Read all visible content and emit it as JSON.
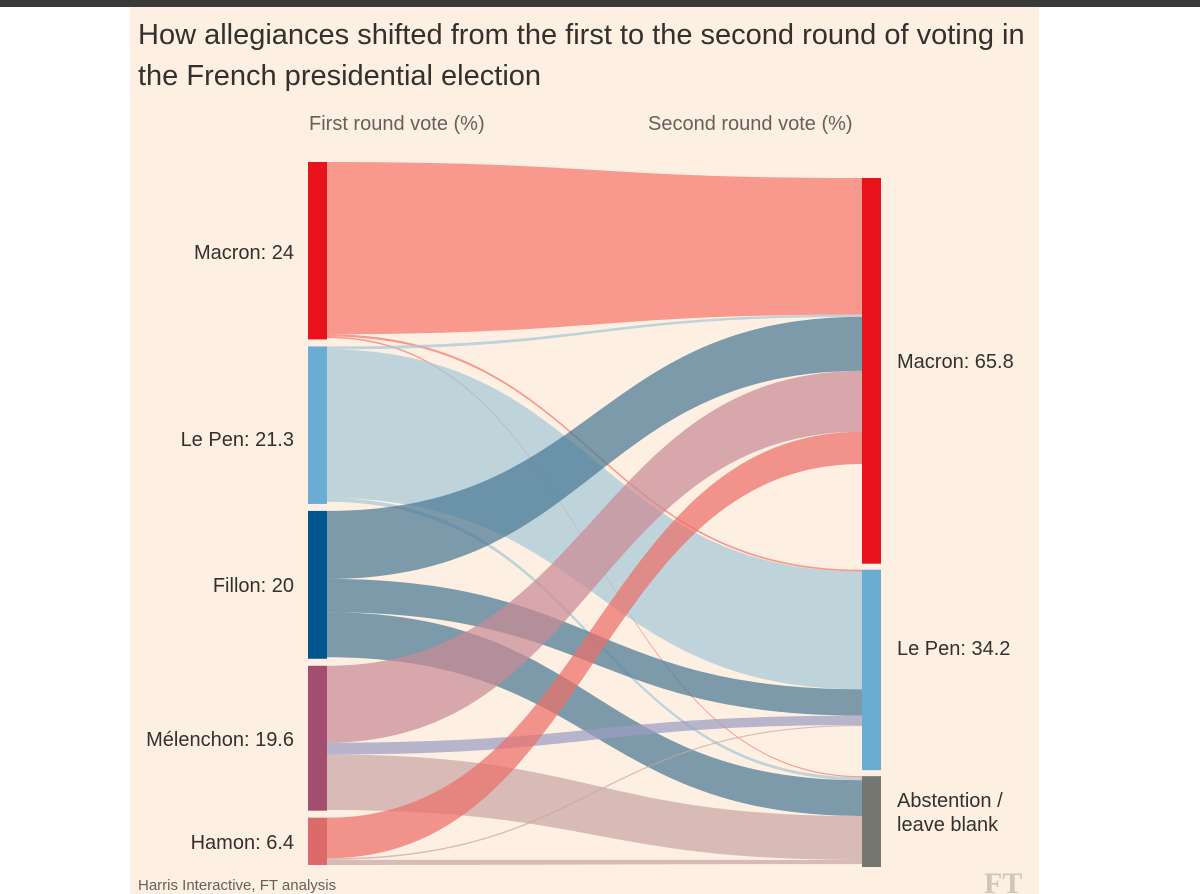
{
  "title": "How allegiances shifted from the first to the second round of voting in the French presidential election",
  "headers": {
    "first_round": "First round vote (%)",
    "second_round": "Second round vote (%)"
  },
  "source": "Harris Interactive, FT analysis",
  "logo": "FT",
  "left_labels": {
    "macron": "Macron: 24",
    "lepen": "Le Pen: 21.3",
    "fillon": "Fillon: 20",
    "melenchon": "Mélenchon: 19.6",
    "hamon": "Hamon: 6.4"
  },
  "right_labels": {
    "macron": "Macron: 65.8",
    "lepen": "Le Pen: 34.2",
    "abstention": "Abstention / leave blank"
  },
  "nodes_left": [
    {
      "id": "macron",
      "value": 24,
      "color": "#e8131b"
    },
    {
      "id": "lepen",
      "value": 21.3,
      "color": "#6aacd2"
    },
    {
      "id": "fillon",
      "value": 20,
      "color": "#00568f"
    },
    {
      "id": "melenchon",
      "value": 19.6,
      "color": "#a24e6e"
    },
    {
      "id": "hamon",
      "value": 6.4,
      "color": "#dc6a6a"
    }
  ],
  "nodes_right": [
    {
      "id": "macron",
      "value": 65.8,
      "color": "#e8131b"
    },
    {
      "id": "lepen",
      "value": 34.2,
      "color": "#6aacd2"
    },
    {
      "id": "abstention",
      "value": 15.5,
      "color": "#767670"
    }
  ],
  "flows": [
    {
      "from": "macron",
      "to": "macron",
      "value": 23.3,
      "color": "#f7766b"
    },
    {
      "from": "macron",
      "to": "lepen",
      "value": 0.3,
      "color": "#f7766b"
    },
    {
      "from": "macron",
      "to": "abstention",
      "value": 0.2,
      "color": "#f7766b"
    },
    {
      "from": "lepen",
      "to": "macron",
      "value": 0.4,
      "color": "#a5c7d7"
    },
    {
      "from": "lepen",
      "to": "lepen",
      "value": 20.1,
      "color": "#a5c7d7"
    },
    {
      "from": "lepen",
      "to": "abstention",
      "value": 0.5,
      "color": "#a5c7d7"
    },
    {
      "from": "fillon",
      "to": "macron",
      "value": 9.2,
      "color": "#4a7894"
    },
    {
      "from": "fillon",
      "to": "lepen",
      "value": 4.5,
      "color": "#4a7894"
    },
    {
      "from": "fillon",
      "to": "abstention",
      "value": 6.1,
      "color": "#4a7894"
    },
    {
      "from": "melenchon",
      "to": "macron",
      "value": 10.4,
      "color": "#c98b96"
    },
    {
      "from": "melenchon",
      "to": "lepen",
      "value": 1.6,
      "color": "#9c9cc2"
    },
    {
      "from": "melenchon",
      "to": "abstention",
      "value": 7.5,
      "color": "#c9a6a5"
    },
    {
      "from": "hamon",
      "to": "macron",
      "value": 5.5,
      "color": "#ec6f6a"
    },
    {
      "from": "hamon",
      "to": "lepen",
      "value": 0.2,
      "color": "#c9a6a5"
    },
    {
      "from": "hamon",
      "to": "abstention",
      "value": 0.7,
      "color": "#c9a6a5"
    }
  ]
}
